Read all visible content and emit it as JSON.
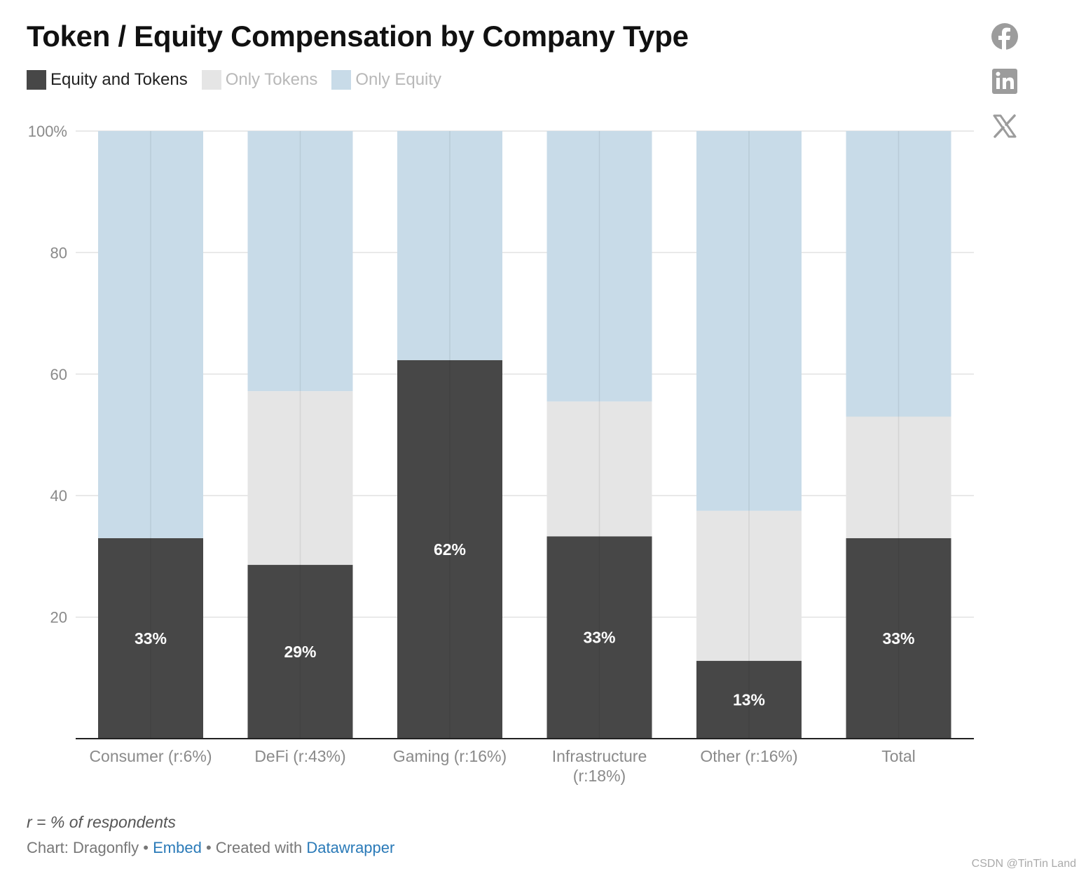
{
  "title": "Token / Equity Compensation by Company Type",
  "legend": [
    {
      "label": "Equity and Tokens",
      "color": "#474747",
      "active": true
    },
    {
      "label": "Only Tokens",
      "color": "#e5e5e5",
      "active": false
    },
    {
      "label": "Only Equity",
      "color": "#c8dbe8",
      "active": false
    }
  ],
  "social": [
    "facebook-icon",
    "linkedin-icon",
    "x-icon"
  ],
  "chart_data": {
    "type": "bar",
    "stacked": true,
    "categories": [
      "Consumer (r:6%)",
      "DeFi (r:43%)",
      "Gaming (r:16%)",
      "Infrastructure (r:18%)",
      "Other (r:16%)",
      "Total"
    ],
    "category_lines": [
      [
        "Consumer (r:6%)"
      ],
      [
        "DeFi (r:43%)"
      ],
      [
        "Gaming (r:16%)"
      ],
      [
        "Infrastructure",
        "(r:18%)"
      ],
      [
        "Other (r:16%)"
      ],
      [
        "Total"
      ]
    ],
    "series": [
      {
        "name": "Equity and Tokens",
        "color": "#474747",
        "values": [
          33,
          28.6,
          62.3,
          33.3,
          12.8,
          33
        ],
        "labels": [
          "33%",
          "29%",
          "62%",
          "33%",
          "13%",
          "33%"
        ]
      },
      {
        "name": "Only Tokens",
        "color": "#e5e5e5",
        "values": [
          0,
          28.6,
          0,
          22.2,
          24.7,
          20
        ]
      },
      {
        "name": "Only Equity",
        "color": "#c8dbe8",
        "values": [
          67,
          42.8,
          37.7,
          44.5,
          62.5,
          47
        ]
      }
    ],
    "yticks": [
      "20",
      "40",
      "60",
      "80",
      "100%"
    ],
    "ytick_values": [
      20,
      40,
      60,
      80,
      100
    ],
    "ylim": [
      0,
      100
    ],
    "grid": true,
    "legend_position": "top-left"
  },
  "footnote": "r = % of respondents",
  "credits": {
    "source": "Chart: Dragonfly",
    "sep1": " • ",
    "embed": "Embed",
    "sep2": " • Created with ",
    "tool": "Datawrapper"
  },
  "watermark": "CSDN @TinTin Land"
}
